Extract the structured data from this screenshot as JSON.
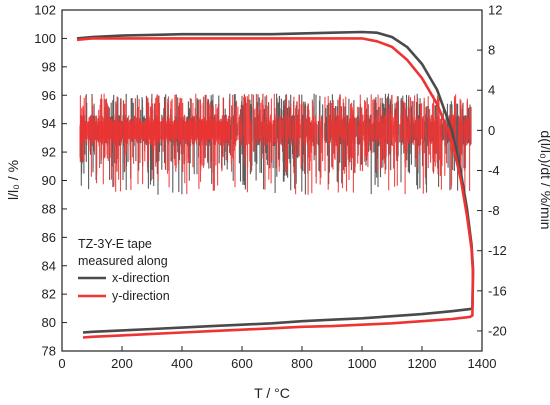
{
  "chart_data": {
    "type": "line",
    "title": "",
    "xlabel": "T / °C",
    "ylabel_left": "l/l₀ / %",
    "ylabel_right": "d(l/l₀)/dt / %/min",
    "xlim": [
      0,
      1400
    ],
    "ylim_left": [
      78,
      102
    ],
    "ylim_right": [
      -22,
      12
    ],
    "x_ticks": [
      0,
      200,
      400,
      600,
      800,
      1000,
      1200,
      1400
    ],
    "y_left_ticks": [
      78,
      80,
      82,
      84,
      86,
      88,
      90,
      92,
      94,
      96,
      98,
      100,
      102
    ],
    "y_right_ticks": [
      -20,
      -16,
      -12,
      -8,
      -4,
      0,
      4,
      8,
      12
    ],
    "legend": {
      "placement": "lower-left",
      "title_lines": [
        "TZ-3Y-E tape",
        "measured along"
      ],
      "entries": [
        {
          "label": "x-direction",
          "color": "#4a4a4a"
        },
        {
          "label": "y-direction",
          "color": "#ee3333"
        }
      ]
    },
    "series": [
      {
        "name": "x-direction",
        "axis": "left",
        "color": "#4a4a4a",
        "x": [
          50,
          100,
          200,
          300,
          400,
          500,
          600,
          700,
          800,
          900,
          1000,
          1050,
          1100,
          1150,
          1200,
          1250,
          1300,
          1330,
          1350,
          1365,
          1370,
          1368,
          1360,
          1300,
          1200,
          1100,
          1000,
          900,
          800,
          700,
          600,
          500,
          400,
          300,
          200,
          100,
          70
        ],
        "y": [
          100.0,
          100.1,
          100.2,
          100.25,
          100.3,
          100.3,
          100.3,
          100.3,
          100.35,
          100.4,
          100.45,
          100.4,
          100.1,
          99.4,
          98.2,
          96.4,
          93.5,
          90.5,
          88.0,
          85.5,
          83.8,
          81.0,
          80.95,
          80.8,
          80.6,
          80.45,
          80.3,
          80.2,
          80.1,
          79.95,
          79.85,
          79.75,
          79.65,
          79.55,
          79.45,
          79.35,
          79.3
        ]
      },
      {
        "name": "y-direction",
        "axis": "left",
        "color": "#ee3333",
        "x": [
          50,
          100,
          200,
          300,
          400,
          500,
          600,
          700,
          800,
          900,
          1000,
          1050,
          1100,
          1150,
          1200,
          1250,
          1300,
          1330,
          1350,
          1365,
          1370,
          1368,
          1360,
          1300,
          1200,
          1100,
          1000,
          900,
          800,
          700,
          600,
          500,
          400,
          300,
          200,
          100,
          70
        ],
        "y": [
          99.9,
          100.0,
          100.0,
          100.0,
          100.0,
          100.0,
          100.0,
          100.0,
          100.0,
          100.0,
          100.0,
          99.8,
          99.4,
          98.5,
          97.2,
          95.4,
          92.8,
          90.0,
          87.5,
          85.2,
          83.5,
          80.5,
          80.4,
          80.25,
          80.1,
          79.95,
          79.85,
          79.75,
          79.7,
          79.6,
          79.5,
          79.4,
          79.3,
          79.2,
          79.1,
          79.0,
          78.95
        ]
      }
    ]
  }
}
